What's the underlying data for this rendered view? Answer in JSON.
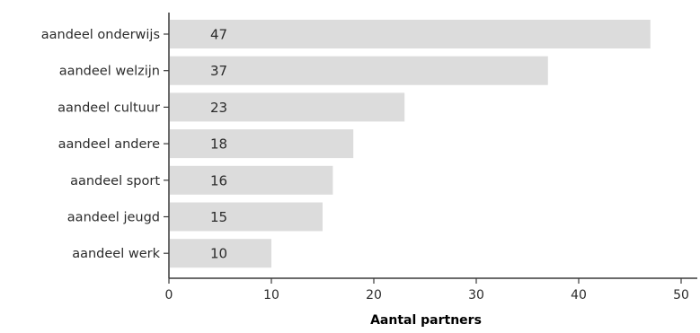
{
  "chart_data": {
    "type": "bar",
    "orientation": "horizontal",
    "title": "",
    "xlabel": "Aantal partners",
    "ylabel": "",
    "categories": [
      "aandeel onderwijs",
      "aandeel welzijn",
      "aandeel cultuur",
      "aandeel andere",
      "aandeel sport",
      "aandeel jeugd",
      "aandeel werk"
    ],
    "values": [
      47,
      37,
      23,
      18,
      16,
      15,
      10
    ],
    "xlim": [
      0,
      50
    ],
    "xticks": [
      0,
      10,
      20,
      30,
      40,
      50
    ],
    "grid": false,
    "legend": "none",
    "colors": {
      "bar": "#dcdcdc",
      "axis": "#3a3a3a",
      "text": "#2b2b2b"
    }
  }
}
